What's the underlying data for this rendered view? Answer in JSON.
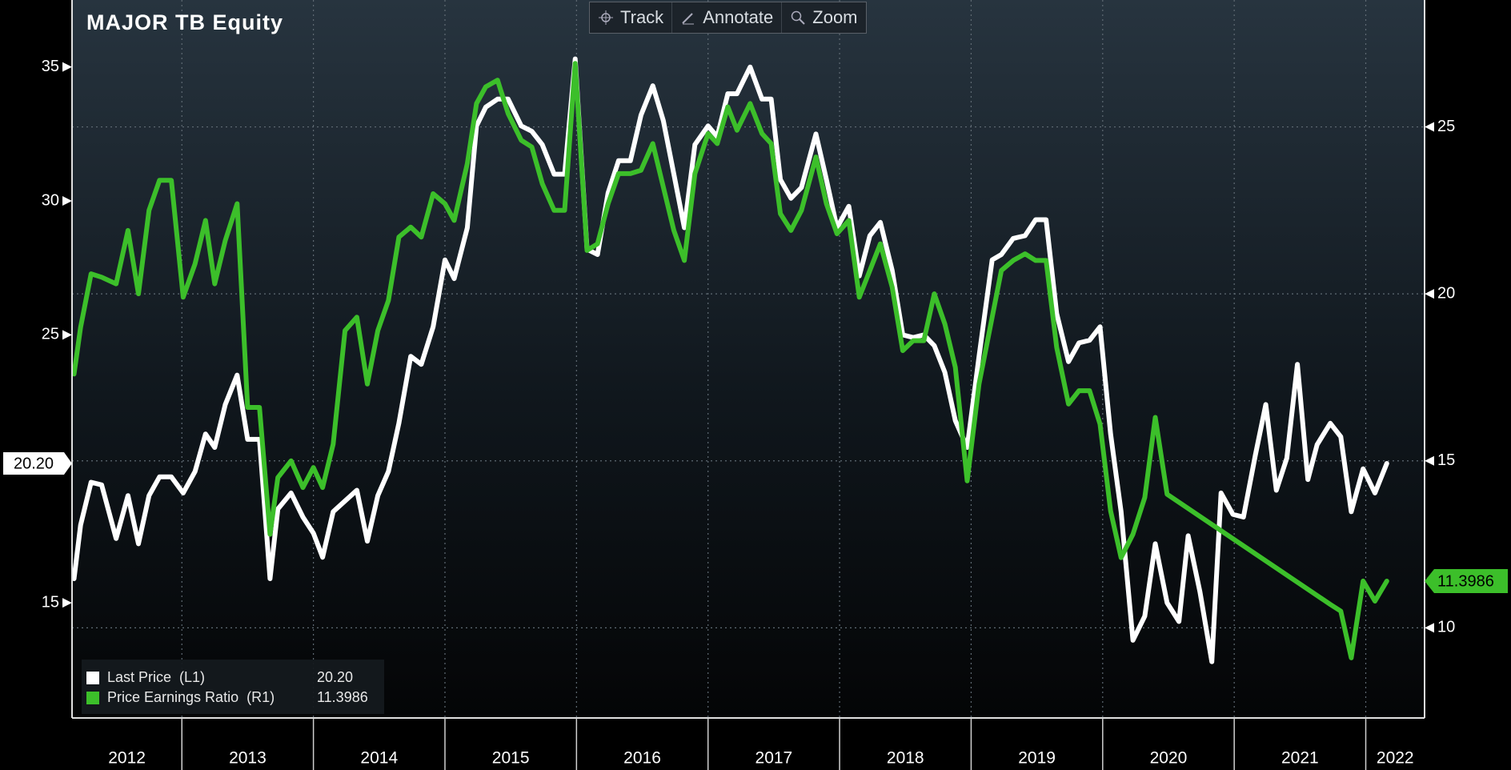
{
  "title": "MAJOR TB Equity",
  "toolbar": [
    "Track",
    "Annotate",
    "Zoom"
  ],
  "chart_data": {
    "type": "line",
    "legend": "lower left",
    "grid": true,
    "xlim": [
      2012.165,
      2022.447
    ],
    "xticks": [
      {
        "value": 2012,
        "label": "2012"
      },
      {
        "value": 2013,
        "label": "2013"
      },
      {
        "value": 2014,
        "label": "2014"
      },
      {
        "value": 2015,
        "label": "2015"
      },
      {
        "value": 2016,
        "label": "2016"
      },
      {
        "value": 2017,
        "label": "2017"
      },
      {
        "value": 2018,
        "label": "2018"
      },
      {
        "value": 2019,
        "label": "2019"
      },
      {
        "value": 2020,
        "label": "2020"
      },
      {
        "value": 2021,
        "label": "2021"
      },
      {
        "value": 2022,
        "label": "2022"
      }
    ],
    "ylim": [
      10.7,
      37.5
    ],
    "yticks": [
      15,
      25,
      30,
      35
    ],
    "y2lim": [
      7.3,
      28.8
    ],
    "y2ticks": [
      10,
      15,
      20,
      25
    ],
    "series": [
      {
        "name": "Last Price  (L1)",
        "color": "#ffffff",
        "axis": "y",
        "x": [
          2012.18,
          2012.23,
          2012.31,
          2012.39,
          2012.5,
          2012.59,
          2012.67,
          2012.75,
          2012.83,
          2012.92,
          2013.01,
          2013.1,
          2013.18,
          2013.25,
          2013.33,
          2013.42,
          2013.5,
          2013.59,
          2013.67,
          2013.73,
          2013.83,
          2013.92,
          2014.0,
          2014.07,
          2014.15,
          2014.24,
          2014.33,
          2014.41,
          2014.49,
          2014.57,
          2014.65,
          2014.74,
          2014.82,
          2014.91,
          2015.0,
          2015.07,
          2015.17,
          2015.24,
          2015.31,
          2015.4,
          2015.48,
          2015.58,
          2015.66,
          2015.74,
          2015.83,
          2015.91,
          2015.99,
          2016.08,
          2016.16,
          2016.24,
          2016.32,
          2016.41,
          2016.49,
          2016.58,
          2016.66,
          2016.74,
          2016.82,
          2016.9,
          2017.0,
          2017.07,
          2017.15,
          2017.22,
          2017.32,
          2017.41,
          2017.48,
          2017.55,
          2017.63,
          2017.71,
          2017.82,
          2017.9,
          2017.98,
          2018.07,
          2018.15,
          2018.23,
          2018.31,
          2018.4,
          2018.48,
          2018.56,
          2018.64,
          2018.72,
          2018.8,
          2018.88,
          2018.97,
          2019.06,
          2019.16,
          2019.23,
          2019.32,
          2019.41,
          2019.49,
          2019.57,
          2019.65,
          2019.74,
          2019.82,
          2019.9,
          2019.98,
          2020.06,
          2020.14,
          2020.23,
          2020.32,
          2020.4,
          2020.49,
          2020.58,
          2020.65,
          2020.74,
          2020.83,
          2020.9,
          2020.99,
          2021.07,
          2021.16,
          2021.24,
          2021.32,
          2021.4,
          2021.48,
          2021.56,
          2021.63,
          2021.73,
          2021.81,
          2021.89,
          2021.98,
          2022.07,
          2022.16
        ],
        "values": [
          15.9,
          17.9,
          19.5,
          19.4,
          17.4,
          19.0,
          17.2,
          19.0,
          19.7,
          19.7,
          19.1,
          19.9,
          21.3,
          20.8,
          22.4,
          23.5,
          21.1,
          21.1,
          15.9,
          18.5,
          19.1,
          18.2,
          17.6,
          16.7,
          18.4,
          18.8,
          19.2,
          17.3,
          19.0,
          19.9,
          21.7,
          24.2,
          23.9,
          25.3,
          27.8,
          27.1,
          29.0,
          32.8,
          33.5,
          33.8,
          33.8,
          32.8,
          32.6,
          32.1,
          31.0,
          31.0,
          35.3,
          28.2,
          28.0,
          30.3,
          31.5,
          31.5,
          33.2,
          34.3,
          33.0,
          31.0,
          29.0,
          32.1,
          32.8,
          32.4,
          34.0,
          34.0,
          35.0,
          33.8,
          33.8,
          30.8,
          30.1,
          30.5,
          32.5,
          30.8,
          29.0,
          29.8,
          27.2,
          28.7,
          29.2,
          27.4,
          25.0,
          24.9,
          25.0,
          24.6,
          23.6,
          21.8,
          20.8,
          24.2,
          27.8,
          28.0,
          28.6,
          28.7,
          29.3,
          29.3,
          25.8,
          24.0,
          24.7,
          24.8,
          25.3,
          21.3,
          18.4,
          13.6,
          14.5,
          17.2,
          15.0,
          14.3,
          17.5,
          15.4,
          12.8,
          19.1,
          18.3,
          18.2,
          20.5,
          22.4,
          19.2,
          20.4,
          23.9,
          19.6,
          20.9,
          21.7,
          21.2,
          18.4,
          20.0,
          19.1,
          20.2
        ],
        "value_labels": [
          null,
          null,
          null,
          null,
          null,
          null,
          null,
          null,
          null,
          null,
          null,
          null,
          null,
          null,
          null,
          null,
          null,
          null,
          null,
          null,
          null,
          null,
          null,
          null,
          null,
          null,
          null,
          null,
          null,
          null,
          null,
          null,
          null,
          null,
          null,
          null,
          null,
          null,
          null,
          null,
          null,
          null,
          null,
          null,
          null,
          null,
          null,
          null,
          null,
          null,
          null,
          null,
          null,
          null,
          null,
          null,
          null,
          null,
          null,
          null,
          null,
          null,
          null,
          null,
          null,
          null,
          null,
          null,
          null,
          null,
          null,
          null,
          null,
          null,
          null,
          null,
          null,
          null,
          null,
          null,
          null,
          null,
          null,
          null,
          null,
          null,
          null,
          null,
          null,
          null,
          null,
          null,
          null,
          null,
          null,
          null,
          null,
          null,
          null,
          null,
          null,
          null,
          null,
          null,
          null,
          null,
          null,
          null,
          null,
          null,
          null,
          null,
          null,
          null,
          null,
          null,
          null,
          null,
          null,
          null,
          "20.20"
        ]
      },
      {
        "name": "Price Earnings Ratio  (R1)",
        "color": "#3cbf2a",
        "axis": "y2",
        "x": [
          2012.18,
          2012.23,
          2012.31,
          2012.39,
          2012.5,
          2012.59,
          2012.67,
          2012.75,
          2012.83,
          2012.92,
          2013.01,
          2013.1,
          2013.18,
          2013.25,
          2013.33,
          2013.42,
          2013.5,
          2013.59,
          2013.67,
          2013.73,
          2013.83,
          2013.92,
          2014.0,
          2014.07,
          2014.15,
          2014.24,
          2014.33,
          2014.41,
          2014.49,
          2014.57,
          2014.65,
          2014.74,
          2014.82,
          2014.91,
          2015.0,
          2015.07,
          2015.17,
          2015.24,
          2015.31,
          2015.4,
          2015.48,
          2015.58,
          2015.66,
          2015.74,
          2015.83,
          2015.91,
          2015.99,
          2016.08,
          2016.16,
          2016.24,
          2016.32,
          2016.41,
          2016.49,
          2016.58,
          2016.66,
          2016.74,
          2016.82,
          2016.9,
          2017.0,
          2017.07,
          2017.15,
          2017.22,
          2017.32,
          2017.41,
          2017.48,
          2017.55,
          2017.63,
          2017.71,
          2017.82,
          2017.9,
          2017.98,
          2018.07,
          2018.15,
          2018.23,
          2018.31,
          2018.4,
          2018.48,
          2018.56,
          2018.64,
          2018.72,
          2018.8,
          2018.88,
          2018.97,
          2019.06,
          2019.16,
          2019.23,
          2019.32,
          2019.41,
          2019.49,
          2019.57,
          2019.65,
          2019.74,
          2019.82,
          2019.9,
          2019.98,
          2020.06,
          2020.14,
          2020.23,
          2020.32,
          2020.4,
          2020.49,
          2021.73,
          2021.81,
          2021.89,
          2021.98,
          2022.07,
          2022.16
        ],
        "values": [
          17.6,
          19.0,
          20.6,
          20.5,
          20.3,
          21.9,
          20.0,
          22.5,
          23.4,
          23.4,
          19.9,
          20.9,
          22.2,
          20.3,
          21.6,
          22.7,
          16.6,
          16.6,
          12.8,
          14.5,
          15.0,
          14.2,
          14.8,
          14.2,
          15.5,
          18.9,
          19.3,
          17.3,
          18.9,
          19.8,
          21.7,
          22.0,
          21.7,
          23.0,
          22.7,
          22.2,
          23.9,
          25.7,
          26.2,
          26.4,
          25.4,
          24.6,
          24.4,
          23.3,
          22.5,
          22.5,
          26.9,
          21.3,
          21.5,
          22.7,
          23.6,
          23.6,
          23.7,
          24.5,
          23.2,
          21.9,
          21.0,
          23.6,
          24.8,
          24.5,
          25.6,
          24.9,
          25.7,
          24.8,
          24.5,
          22.4,
          21.9,
          22.5,
          24.1,
          22.7,
          21.8,
          22.2,
          19.9,
          20.7,
          21.5,
          20.2,
          18.3,
          18.6,
          18.6,
          20.0,
          19.1,
          17.8,
          14.4,
          17.3,
          19.3,
          20.7,
          21.0,
          21.2,
          21.0,
          21.0,
          18.4,
          16.7,
          17.1,
          17.1,
          16.1,
          13.5,
          12.1,
          12.8,
          13.9,
          16.3,
          14.0,
          10.7,
          10.5,
          9.1,
          11.4,
          10.8,
          11.3986
        ]
      }
    ]
  }
}
